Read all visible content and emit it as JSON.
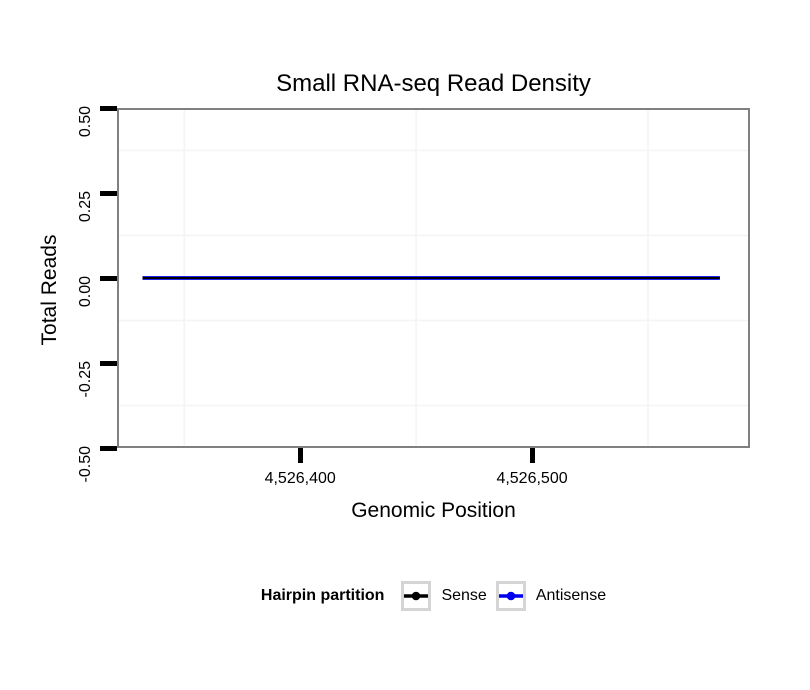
{
  "chart_data": {
    "type": "line",
    "title": "Small RNA-seq Read Density",
    "xlabel": "Genomic Position",
    "ylabel": "Total Reads",
    "xlim": [
      4526321,
      4526594
    ],
    "ylim": [
      -0.5,
      0.5
    ],
    "x_ticks": [
      {
        "value": 4526400,
        "label": "4,526,400"
      },
      {
        "value": 4526500,
        "label": "4,526,500"
      }
    ],
    "y_ticks": [
      {
        "value": 0.5,
        "label": "0.50"
      },
      {
        "value": 0.25,
        "label": "0.25"
      },
      {
        "value": 0.0,
        "label": "0.00"
      },
      {
        "value": -0.25,
        "label": "-0.25"
      },
      {
        "value": -0.5,
        "label": "-0.50"
      }
    ],
    "x_minor_gridlines": [
      4526350,
      4526450,
      4526550
    ],
    "y_minor_gridlines": [
      0.375,
      0.125,
      -0.125,
      -0.375
    ],
    "grid": "minor gridlines only, very light gray; major gridlines not drawn",
    "series": [
      {
        "name": "Antisense",
        "color": "#0000EE",
        "points": [
          [
            4526332,
            0
          ],
          [
            4526581,
            0
          ]
        ]
      },
      {
        "name": "Sense",
        "color": "#000000",
        "points": [
          [
            4526332,
            0
          ],
          [
            4526581,
            0
          ]
        ]
      }
    ],
    "legend": {
      "title": "Hairpin partition",
      "position": "bottom",
      "entries": [
        {
          "label": "Sense",
          "color": "#000000"
        },
        {
          "label": "Antisense",
          "color": "#0000EE"
        }
      ]
    }
  },
  "style": {
    "background": "#ffffff",
    "panel_border_color": "#808080",
    "grid_minor_color": "#f4f4f4",
    "axis_tick_color": "#000000",
    "legend_key_border_color": "#d5d5d5"
  }
}
